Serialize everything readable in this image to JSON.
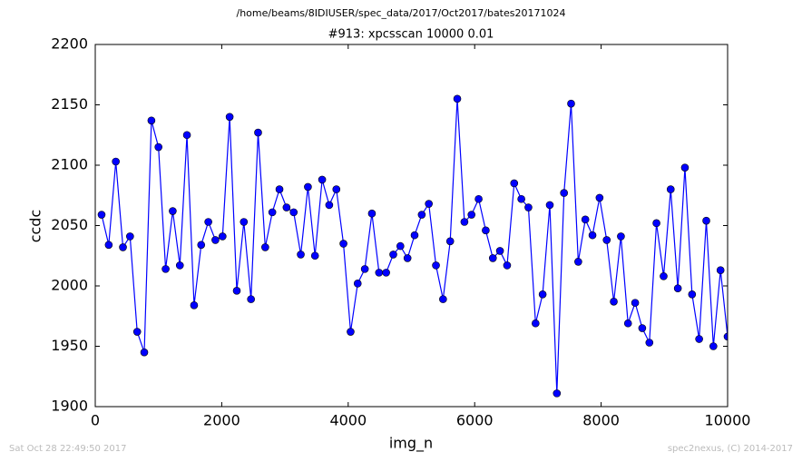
{
  "chart_data": {
    "type": "line",
    "suptitle": "/home/beams/8IDIUSER/spec_data/2017/Oct2017/bates20171024",
    "title": "#913: xpcsscan 10000 0.01",
    "xlabel": "img_n",
    "ylabel": "ccdc",
    "footer_left": "Sat Oct 28 22:49:50 2017",
    "footer_right": "spec2nexus, (C) 2014-2017",
    "x": [
      100,
      213,
      325,
      438,
      550,
      663,
      775,
      888,
      1000,
      1113,
      1225,
      1338,
      1450,
      1563,
      1675,
      1788,
      1900,
      2013,
      2125,
      2238,
      2350,
      2463,
      2575,
      2688,
      2800,
      2913,
      3025,
      3138,
      3250,
      3363,
      3475,
      3588,
      3700,
      3813,
      3925,
      4038,
      4150,
      4263,
      4375,
      4488,
      4600,
      4713,
      4825,
      4938,
      5050,
      5163,
      5275,
      5388,
      5500,
      5613,
      5725,
      5838,
      5950,
      6063,
      6175,
      6288,
      6400,
      6513,
      6625,
      6738,
      6850,
      6963,
      7075,
      7188,
      7300,
      7413,
      7525,
      7638,
      7750,
      7863,
      7975,
      8088,
      8200,
      8313,
      8425,
      8538,
      8650,
      8763,
      8875,
      8988,
      9100,
      9213,
      9325,
      9438,
      9550,
      9663,
      9775,
      9888,
      10000
    ],
    "series": [
      {
        "name": "ccdc",
        "color": "#0000ff",
        "values": [
          2059,
          2034,
          2103,
          2032,
          2041,
          1962,
          1945,
          2137,
          2115,
          2014,
          2062,
          2017,
          2125,
          1984,
          2034,
          2053,
          2038,
          2041,
          2140,
          1996,
          2053,
          1989,
          2127,
          2032,
          2061,
          2080,
          2065,
          2061,
          2026,
          2082,
          2025,
          2088,
          2067,
          2080,
          2035,
          1962,
          2002,
          2014,
          2060,
          2011,
          2011,
          2026,
          2033,
          2023,
          2042,
          2059,
          2068,
          2017,
          1989,
          2037,
          2155,
          2053,
          2059,
          2072,
          2046,
          2023,
          2029,
          2017,
          2085,
          2072,
          2065,
          1969,
          1993,
          2067,
          1911,
          2077,
          2151,
          2020,
          2055,
          2042,
          2073,
          2038,
          1987,
          2041,
          1969,
          1986,
          1965,
          1953,
          2052,
          2008,
          2080,
          1998,
          2098,
          1993,
          1956,
          2054,
          1950,
          2013,
          1958
        ]
      }
    ],
    "xlim": [
      0,
      10000
    ],
    "xticks": [
      0,
      2000,
      4000,
      6000,
      8000,
      10000
    ],
    "ylim": [
      1900,
      2200
    ],
    "yticks": [
      1900,
      1950,
      2000,
      2050,
      2100,
      2150,
      2200
    ]
  }
}
